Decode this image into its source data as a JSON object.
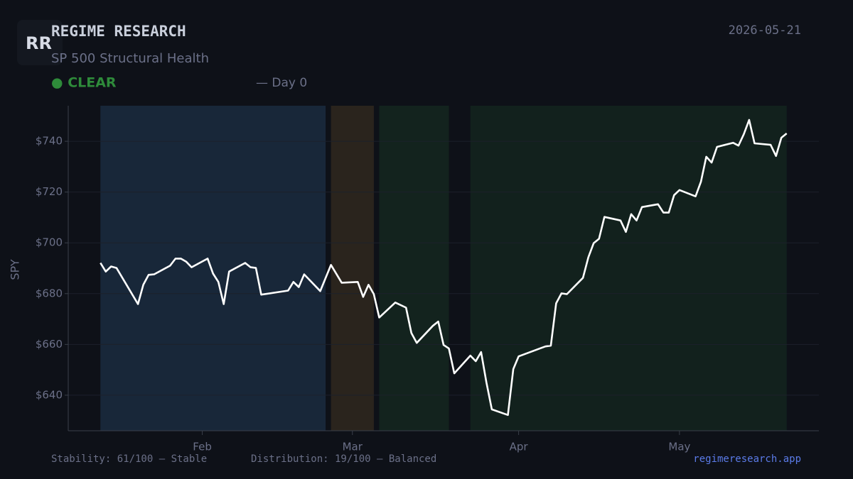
{
  "header": {
    "logo": "RR",
    "title": "REGIME RESEARCH",
    "subtitle": "SP 500 Structural Health",
    "status": "● CLEAR",
    "day": "— Day 0",
    "date": "2026-05-21"
  },
  "footer": {
    "stability": "Stability: 61/100 — Stable",
    "distribution": "Distribution: 19/100 — Balanced",
    "link": "regimeresearch.app"
  },
  "chart_data": {
    "type": "line",
    "y_label": "SPY",
    "color": "#ffffff",
    "x": [
      0,
      1,
      2,
      3,
      7,
      8,
      9,
      10,
      13,
      14,
      15,
      16,
      17,
      20,
      21,
      22,
      23,
      24,
      27,
      28,
      29,
      30,
      35,
      36,
      37,
      38,
      41,
      43,
      45,
      48,
      49,
      50,
      51,
      52,
      55,
      57,
      58,
      59,
      62,
      63,
      64,
      65,
      66,
      69,
      70,
      71,
      72,
      73,
      76,
      77,
      78,
      83,
      84,
      85,
      86,
      87,
      90,
      91,
      92,
      93,
      94,
      97,
      98,
      99,
      100,
      101,
      104,
      105,
      106,
      107,
      108,
      111,
      112,
      113,
      114,
      115,
      118,
      119,
      120,
      121,
      122,
      125,
      126,
      127,
      128
    ],
    "values": [
      692.1,
      688.7,
      690.7,
      690.1,
      675.9,
      683.5,
      687.4,
      687.6,
      691,
      693.8,
      693.8,
      692.6,
      690.4,
      693.8,
      687.9,
      684.6,
      675.9,
      688.7,
      692.1,
      690.4,
      690.1,
      679.6,
      681.2,
      684.6,
      682.6,
      687.6,
      681,
      691.3,
      684.3,
      684.6,
      678.7,
      683.5,
      679.8,
      670.6,
      676.5,
      674.5,
      664.5,
      660.6,
      667.3,
      669,
      659.8,
      658.4,
      648.6,
      655.6,
      653.4,
      657,
      645,
      634.4,
      632.2,
      650.3,
      655.3,
      659.2,
      659.5,
      676.2,
      680.1,
      679.8,
      686.2,
      694.3,
      699.9,
      701.6,
      710.2,
      708.8,
      704.3,
      711.3,
      708.8,
      714.1,
      715.2,
      711.9,
      711.9,
      718.8,
      720.8,
      718.3,
      724.1,
      733.9,
      731.6,
      737.8,
      739.4,
      738.3,
      742.8,
      748.4,
      739.2,
      738.6,
      734.2,
      741.4,
      743.1
    ],
    "xlim": [
      -6,
      134
    ],
    "xticks": [
      {
        "value": 19,
        "label": "Feb"
      },
      {
        "value": 47,
        "label": "Mar"
      },
      {
        "value": 78,
        "label": "Apr"
      },
      {
        "value": 108,
        "label": "May"
      }
    ],
    "ylim": [
      626,
      754
    ],
    "yticks": [
      {
        "value": 640,
        "label": "$640"
      },
      {
        "value": 660,
        "label": "$660"
      },
      {
        "value": 680,
        "label": "$680"
      },
      {
        "value": 700,
        "label": "$700"
      },
      {
        "value": 720,
        "label": "$720"
      },
      {
        "value": 740,
        "label": "$740"
      }
    ],
    "grid": true,
    "bands": [
      {
        "start": 0,
        "end": 42,
        "color": "#182739"
      },
      {
        "start": 43,
        "end": 51,
        "color": "#2a241d"
      },
      {
        "start": 52,
        "end": 65,
        "color": "#13231e"
      },
      {
        "start": 69,
        "end": 128,
        "color": "#12211d"
      }
    ]
  }
}
